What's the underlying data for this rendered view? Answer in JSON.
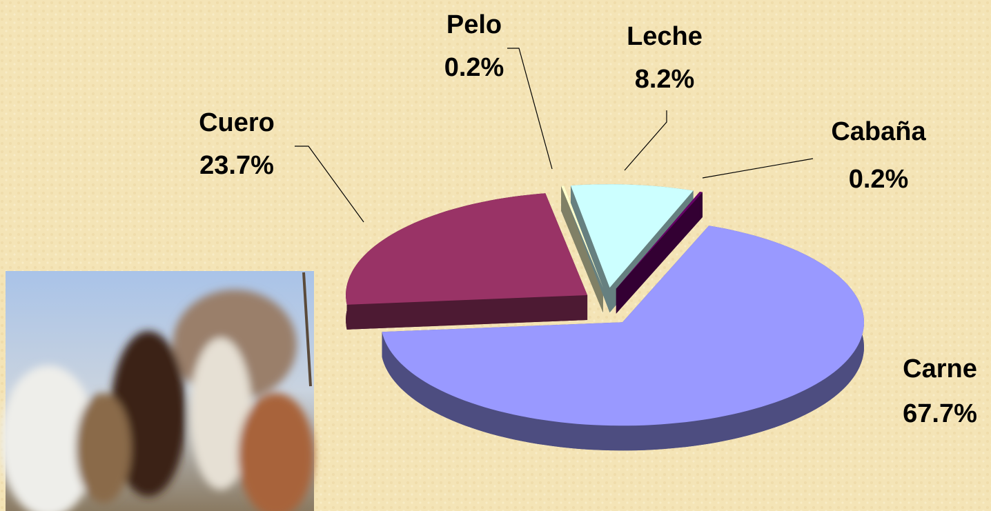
{
  "chart_data": {
    "type": "pie",
    "categories": [
      "Pelo",
      "Leche",
      "Cabaña",
      "Carne",
      "Cuero"
    ],
    "values": [
      0.2,
      8.2,
      0.2,
      67.7,
      23.7
    ],
    "value_labels": [
      "0.2%",
      "8.2%",
      "0.2%",
      "67.7%",
      "23.7%"
    ],
    "colors": [
      "#ffffcc",
      "#ccffff",
      "#660066",
      "#9999ff",
      "#993366"
    ]
  }
}
